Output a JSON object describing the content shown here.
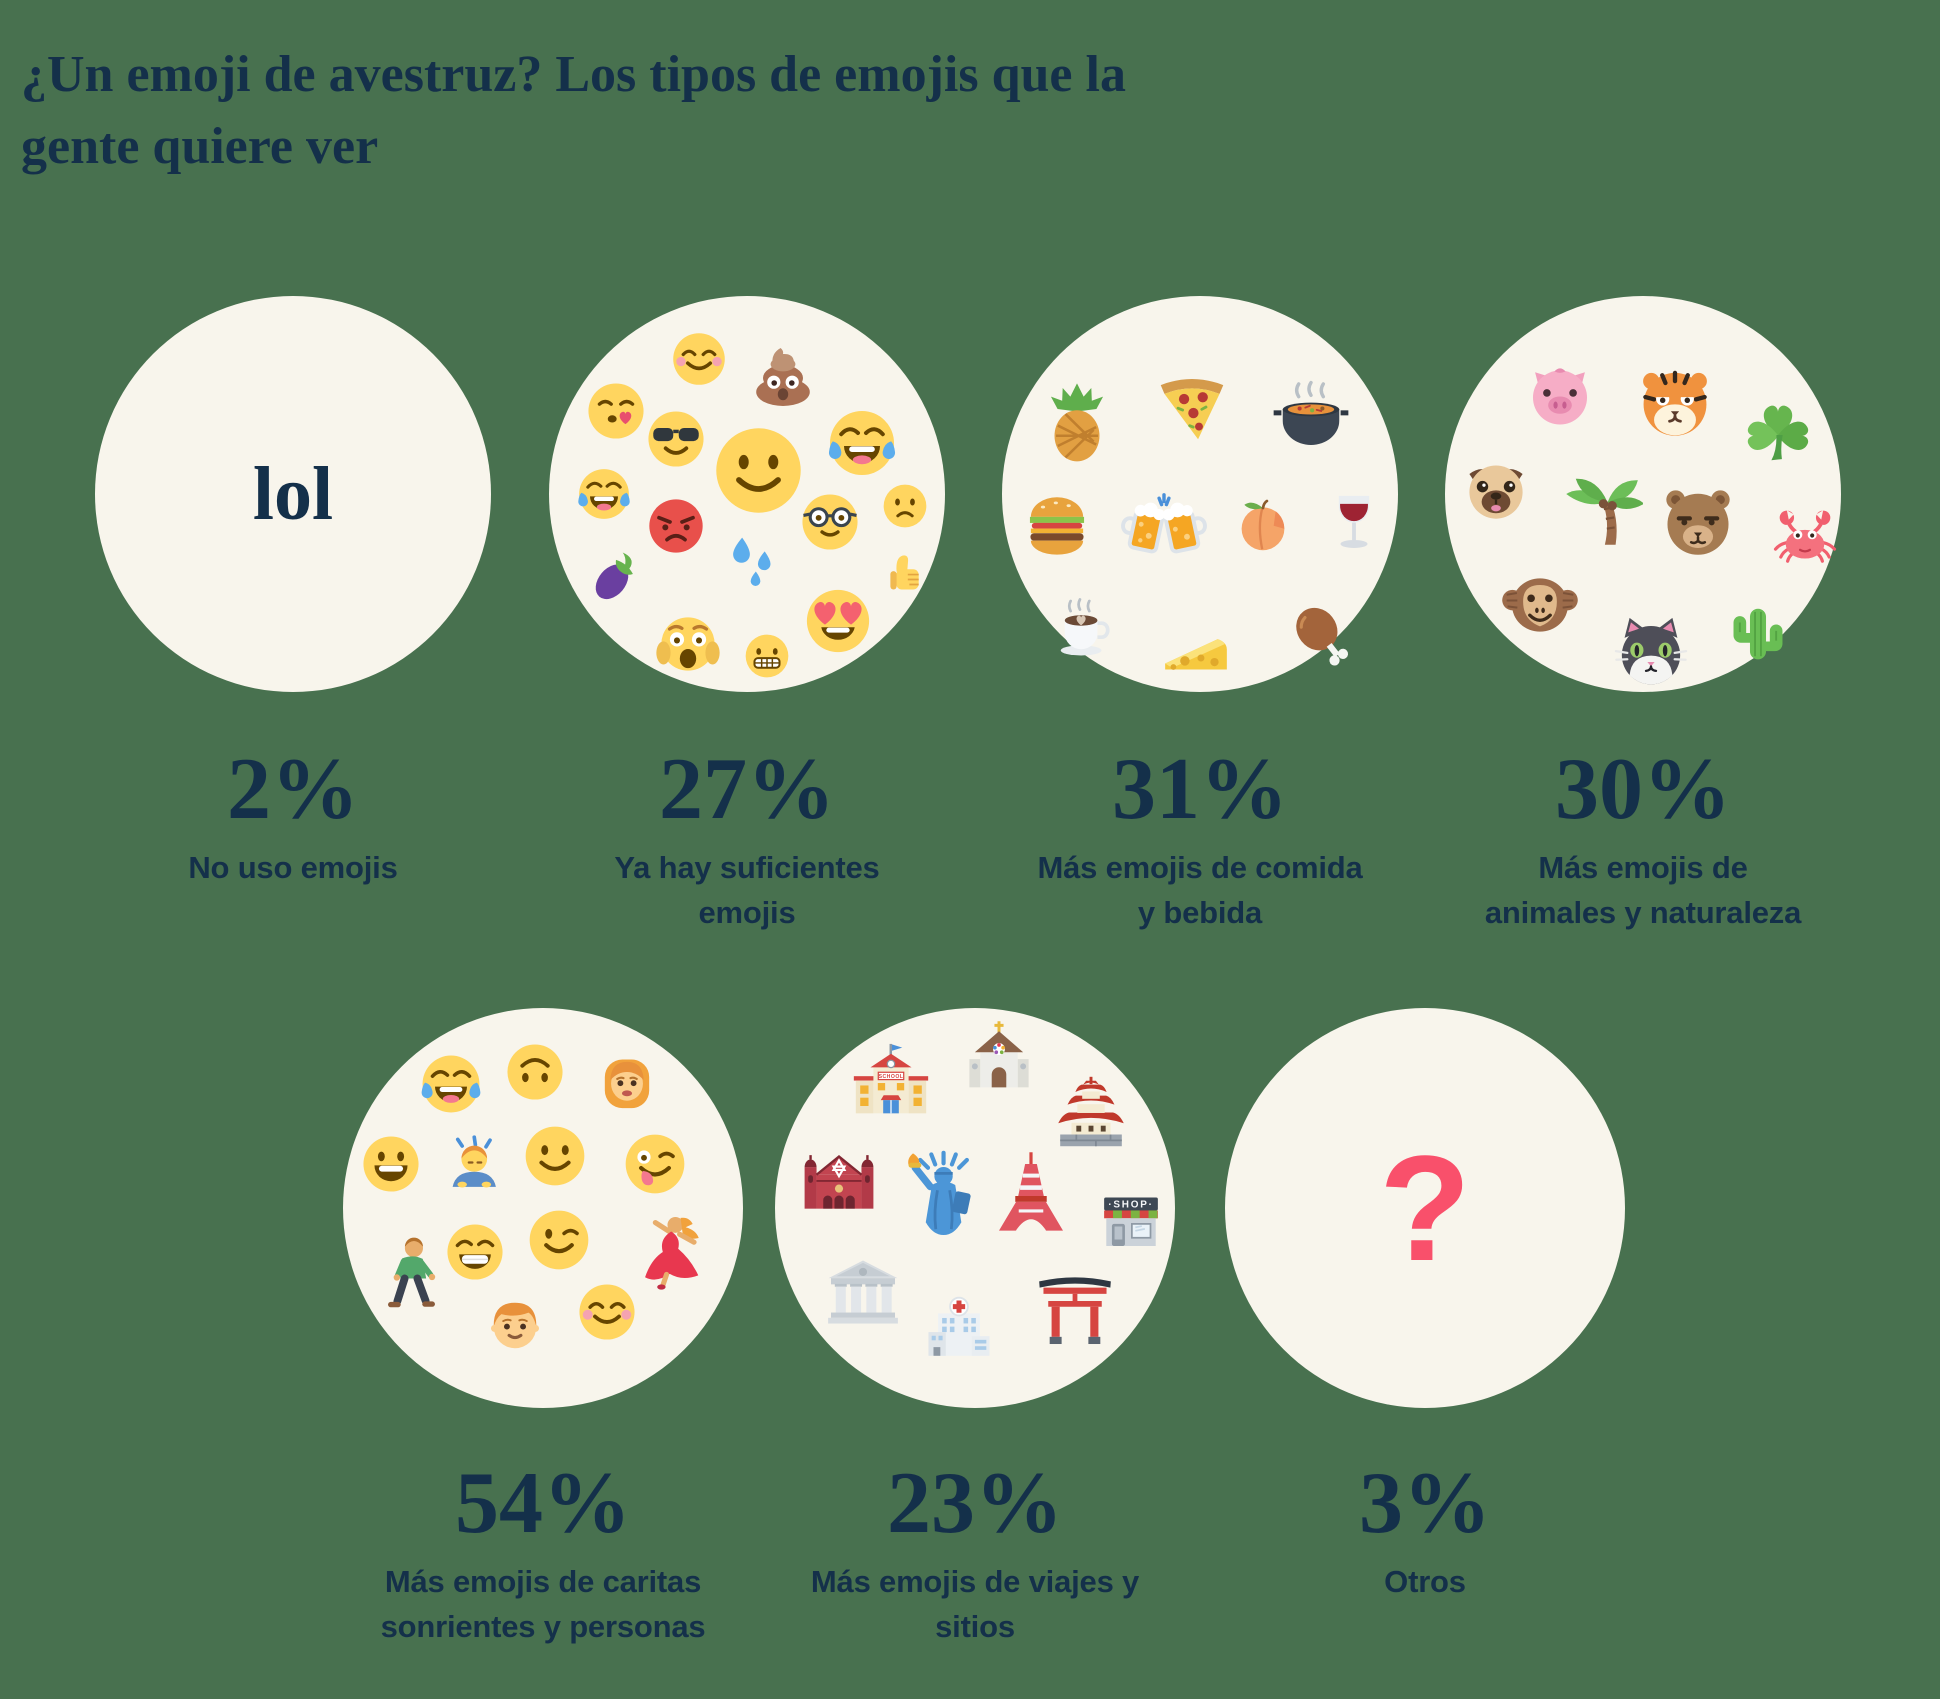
{
  "title": {
    "full": "¿Un emoji de avestruz? Los tipos de emojis que la gente quiere ver",
    "line1": "¿Un emoji de avestruz? Los tipos de emojis que la",
    "line2": "gente quiere ver"
  },
  "signs": {
    "school": "SCHOOL",
    "shop": "·SHOP·"
  },
  "colors": {
    "background": "#48714F",
    "circle": "#F8F5EC",
    "text": "#14304A",
    "question_mark_pink": "#F9506B"
  },
  "categories": [
    {
      "percent": "2%",
      "label": "No uso emojis",
      "circle_text": "lol",
      "emojis": []
    },
    {
      "percent": "27%",
      "label": "Ya hay suficientes emojis",
      "emojis": [
        "face-blush",
        "poop",
        "face-kiss",
        "face-sunglasses",
        "face-joy",
        "face-smile",
        "face-joy",
        "face-angry",
        "face-nerd",
        "face-frown",
        "sweat-drops",
        "eggplant",
        "thumbs-up",
        "face-heart-eyes",
        "face-scream",
        "face-grimace"
      ]
    },
    {
      "percent": "31%",
      "label": "Más emojis de comida y bebida",
      "emojis": [
        "pineapple",
        "pizza",
        "pot-of-food",
        "hamburger",
        "beers",
        "peach",
        "wine",
        "coffee",
        "cheese",
        "drumstick"
      ]
    },
    {
      "percent": "30%",
      "label": "Más emojis de animales y naturaleza",
      "emojis": [
        "pig",
        "tiger",
        "clover",
        "pug",
        "palm-tree",
        "bear",
        "crab",
        "monkey",
        "cat",
        "cactus"
      ]
    },
    {
      "percent": "54%",
      "label": "Más emojis de caritas sonrientes y personas",
      "emojis": [
        "face-joy",
        "face-upside-down",
        "woman",
        "face-grin",
        "person-bow",
        "face-smile",
        "face-tongue-wink",
        "man-walking",
        "face-grin-teeth",
        "face-wink",
        "dancer",
        "boy",
        "face-blush"
      ]
    },
    {
      "percent": "23%",
      "label": "Más emojis de viajes y sitios",
      "emojis": [
        "school",
        "church",
        "japanese-castle",
        "synagogue",
        "statue-of-liberty",
        "tokyo-tower",
        "shop",
        "classical-building",
        "hospital",
        "torii"
      ]
    },
    {
      "percent": "3%",
      "label": "Otros",
      "circle_text": "?",
      "emojis": []
    }
  ],
  "chart_data": {
    "type": "table",
    "title": "¿Un emoji de avestruz? Los tipos de emojis que la gente quiere ver",
    "categories": [
      "No uso emojis",
      "Ya hay suficientes emojis",
      "Más emojis de comida y bebida",
      "Más emojis de animales y naturaleza",
      "Más emojis de caritas sonrientes y personas",
      "Más emojis de viajes y sitios",
      "Otros"
    ],
    "values": [
      2,
      27,
      31,
      30,
      54,
      23,
      3
    ],
    "unit": "%",
    "note": "Proportional emoji-cloud circles; percentages of people wanting each emoji type"
  }
}
